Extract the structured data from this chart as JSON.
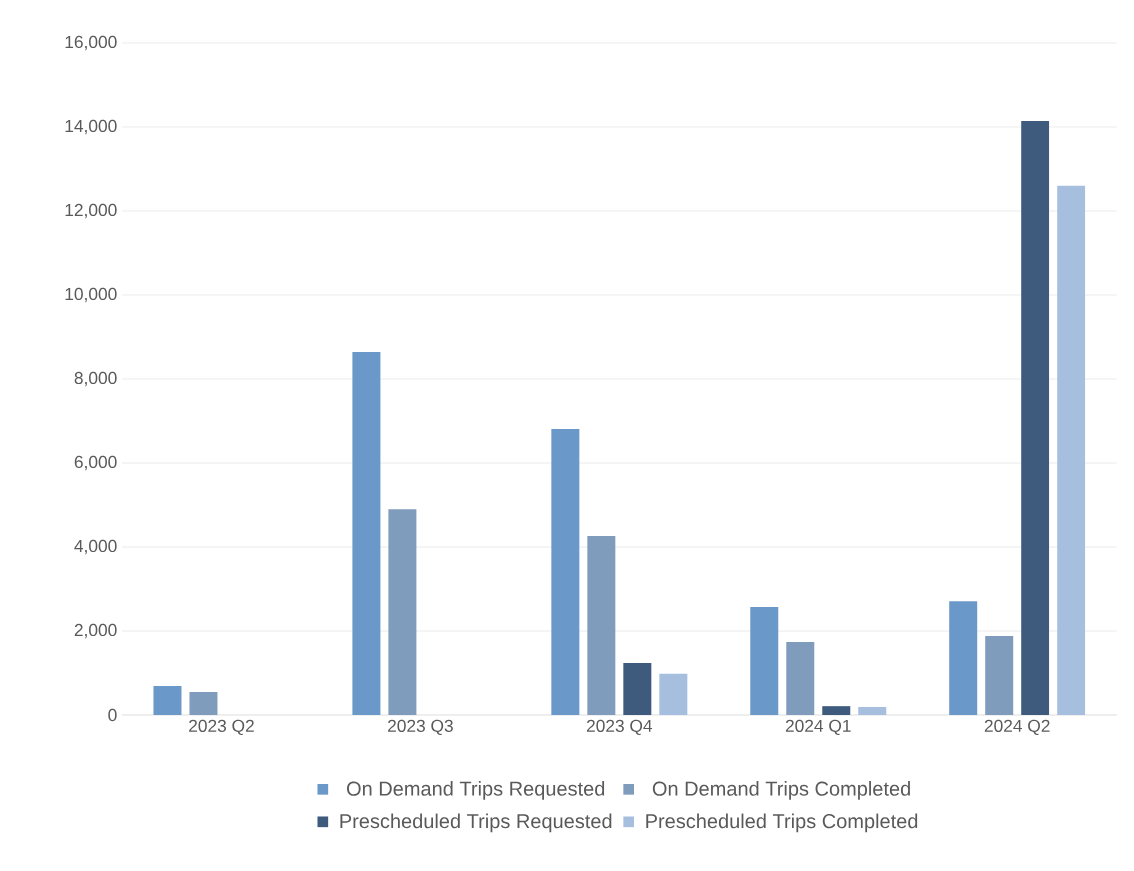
{
  "chart_data": {
    "type": "bar",
    "categories": [
      "2023 Q2",
      "2023 Q3",
      "2023 Q4",
      "2024 Q1",
      "2024 Q2"
    ],
    "series": [
      {
        "name": "On Demand Trips Requested",
        "color": "#6a98c9",
        "values": [
          690,
          8640,
          6810,
          2570,
          2710
        ]
      },
      {
        "name": "On Demand Trips Completed",
        "color": "#809cbd",
        "values": [
          550,
          4900,
          4260,
          1740,
          1880
        ]
      },
      {
        "name": "Prescheduled Trips Requested",
        "color": "#3e5a7d",
        "values": [
          null,
          null,
          1240,
          210,
          14140
        ]
      },
      {
        "name": "Prescheduled Trips Completed",
        "color": "#a6bfdf",
        "values": [
          null,
          null,
          980,
          190,
          12600
        ]
      }
    ],
    "ylim": [
      0,
      16000
    ],
    "yticks": [
      0,
      {
        "value": 2000,
        "label": "2,000"
      },
      {
        "value": 4000,
        "label": "4,000"
      },
      {
        "value": 6000,
        "label": "6,000"
      },
      {
        "value": 8000,
        "label": "8,000"
      },
      {
        "value": 10000,
        "label": "10,000"
      },
      {
        "value": 12000,
        "label": "12,000"
      },
      {
        "value": 14000,
        "label": "14,000"
      },
      {
        "value": 16000,
        "label": "16,000"
      }
    ],
    "grid": "y",
    "legend": "bottom"
  }
}
